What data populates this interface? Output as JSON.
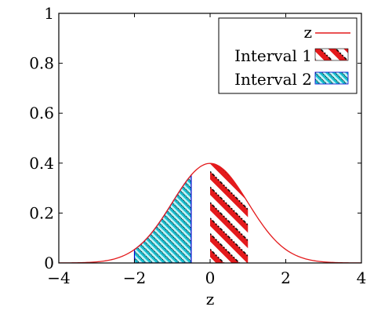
{
  "chart_data": {
    "type": "area",
    "title": "",
    "xlabel": "z",
    "ylabel": "",
    "xlim": [
      -4,
      4
    ],
    "ylim": [
      0,
      1
    ],
    "x_ticks": [
      -4,
      -2,
      0,
      2,
      4
    ],
    "x_tick_labels": [
      "−4",
      "−2",
      "0",
      "2",
      "4"
    ],
    "y_ticks": [
      0,
      0.2,
      0.4,
      0.6,
      0.8,
      1
    ],
    "y_tick_labels": [
      "0",
      "0.2",
      "0.4",
      "0.6",
      "0.8",
      "1"
    ],
    "grid": false,
    "legend_position": "top-right",
    "series": [
      {
        "name": "z",
        "kind": "line",
        "function": "standard-normal-pdf",
        "x_range": [
          -4,
          4
        ],
        "color": "#e41a1c"
      },
      {
        "name": "Interval 1",
        "kind": "shaded-interval",
        "x_range": [
          0,
          1
        ],
        "fill_color": "#e41a1c",
        "pattern": "north-east-lines"
      },
      {
        "name": "Interval 2",
        "kind": "shaded-interval",
        "x_range": [
          -2,
          -0.5
        ],
        "fill_color": "#17becf",
        "border_color": "#0000cc",
        "pattern": "north-east-lines"
      }
    ]
  }
}
